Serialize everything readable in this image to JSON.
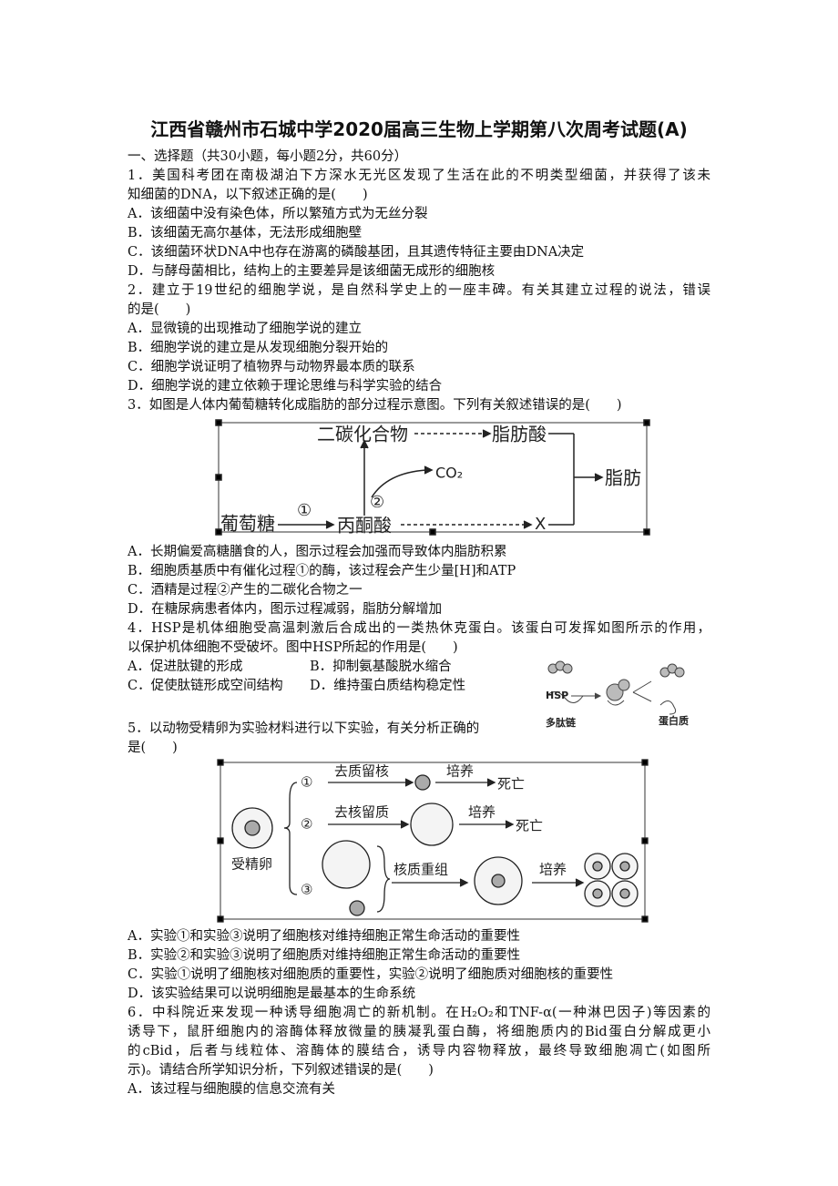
{
  "title": "江西省赣州市石城中学2020届高三生物上学期第八次周考试题(A)",
  "section": "一、选择题（共30小题，每小题2分，共60分）",
  "questions": [
    {
      "stem": [
        "1．美国科考团在南极湖泊下方深水无光区发现了生活在此的不明类型细菌，并获得了该未",
        "知细菌的DNA，以下叙述正确的是(　　)"
      ],
      "options": [
        "A．该细菌中没有染色体，所以繁殖方式为无丝分裂",
        "B．该细菌无高尔基体，无法形成细胞壁",
        "C．该细菌环状DNA中也存在游离的磷酸基团，且其遗传特征主要由DNA决定",
        "D．与酵母菌相比，结构上的主要差异是该细菌无成形的细胞核"
      ]
    },
    {
      "stem": [
        "2．建立于19世纪的细胞学说，是自然科学史上的一座丰碑。有关其建立过程的说法，错误",
        "的是(　　)"
      ],
      "options": [
        "A．显微镜的出现推动了细胞学说的建立",
        "B．细胞学说的建立是从发现细胞分裂开始的",
        "C．细胞学说证明了植物界与动物界最本质的联系",
        "D．细胞学说的建立依赖于理论思维与科学实验的结合"
      ]
    },
    {
      "stem": [
        "3．如图是人体内葡萄糖转化成脂肪的部分过程示意图。下列有关叙述错误的是(　　)"
      ],
      "figure": {
        "two_carbon": "二碳化合物",
        "fatty_acid": "脂肪酸",
        "co2": "CO₂",
        "step2": "②",
        "step1": "①",
        "glucose": "葡萄糖",
        "pyruvate": "丙酮酸",
        "x": "X",
        "fat": "脂肪"
      },
      "options": [
        "A．长期偏爱高糖膳食的人，图示过程会加强而导致体内脂肪积累",
        "B．细胞质基质中有催化过程①的酶，该过程会产生少量[H]和ATP",
        "C．酒精是过程②产生的二碳化合物之一",
        "D．在糖尿病患者体内，图示过程减弱，脂肪分解增加"
      ]
    },
    {
      "stem": [
        "4．HSP是机体细胞受高温刺激后合成出的一类热休克蛋白。该蛋白可发挥如图所示的作用，",
        "以保护机体细胞不受破坏。图中HSP所起的作用是(　　)"
      ],
      "figure": {
        "hsp": "HSP",
        "polypeptide": "多肽链",
        "protein": "蛋白质"
      },
      "options": [
        "A．促进肽键的形成",
        "B．抑制氨基酸脱水缩合",
        "C．促使肽链形成空间结构",
        "D．维持蛋白质结构稳定性"
      ]
    },
    {
      "stem": [
        "5．以动物受精卵为实验材料进行以下实验，有关分析正确的",
        "是(　　)"
      ],
      "figure": {
        "exp1": "①",
        "op1": "去质留核",
        "culture1": "培养",
        "death1": "死亡",
        "exp2": "②",
        "op2": "去核留质",
        "culture2": "培养",
        "death2": "死亡",
        "egg": "受精卵",
        "exp3": "③",
        "op3": "核质重组",
        "culture3": "培养"
      },
      "options": [
        "A．实验①和实验③说明了细胞核对维持细胞正常生命活动的重要性",
        "B．实验②和实验③说明了细胞质对维持细胞正常生命活动的重要性",
        "C．实验①说明了细胞核对细胞质的重要性，实验②说明了细胞质对细胞核的重要性",
        "D．该实验结果可以说明细胞是最基本的生命系统"
      ]
    },
    {
      "stem": [
        "6．中科院近来发现一种诱导细胞凋亡的新机制。在H₂O₂和TNF-α(一种淋巴因子)等因素的",
        "诱导下，鼠肝细胞内的溶酶体释放微量的胰凝乳蛋白酶，将细胞质内的Bid蛋白分解成更小",
        "的cBid，后者与线粒体、溶酶体的膜结合，诱导内容物释放，最终导致细胞凋亡(如图所",
        "示)。请结合所学知识分析，下列叙述错误的是(　　)"
      ],
      "options": [
        "A．该过程与细胞膜的信息交流有关"
      ]
    }
  ]
}
